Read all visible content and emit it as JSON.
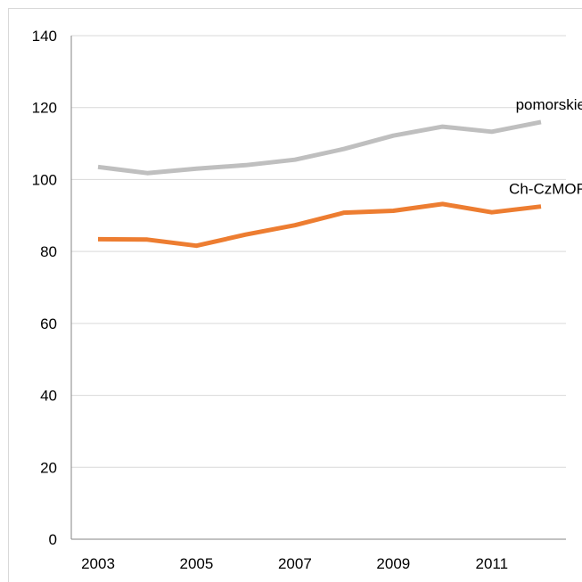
{
  "chart_data": {
    "type": "line",
    "title": "",
    "xlabel": "",
    "ylabel": "",
    "x": [
      2003,
      2004,
      2005,
      2006,
      2007,
      2008,
      2009,
      2010,
      2011,
      2012
    ],
    "x_tick_labels": [
      "2003",
      "2005",
      "2007",
      "2009",
      "2011"
    ],
    "ylim": [
      0,
      140
    ],
    "y_tick_labels": [
      "0",
      "20",
      "40",
      "60",
      "80",
      "100",
      "120",
      "140"
    ],
    "grid": "horizontal",
    "legend": "none",
    "series": [
      {
        "name": "pomorskie",
        "color": "#bfbfbf",
        "values": [
          103.5,
          101.8,
          103.0,
          104.0,
          105.5,
          108.5,
          112.2,
          114.7,
          113.3,
          116.0
        ]
      },
      {
        "name": "Ch-CzMOF",
        "color": "#ed7d31",
        "values": [
          83.4,
          83.3,
          81.6,
          84.7,
          87.3,
          90.8,
          91.3,
          93.2,
          90.9,
          92.5
        ]
      }
    ]
  }
}
